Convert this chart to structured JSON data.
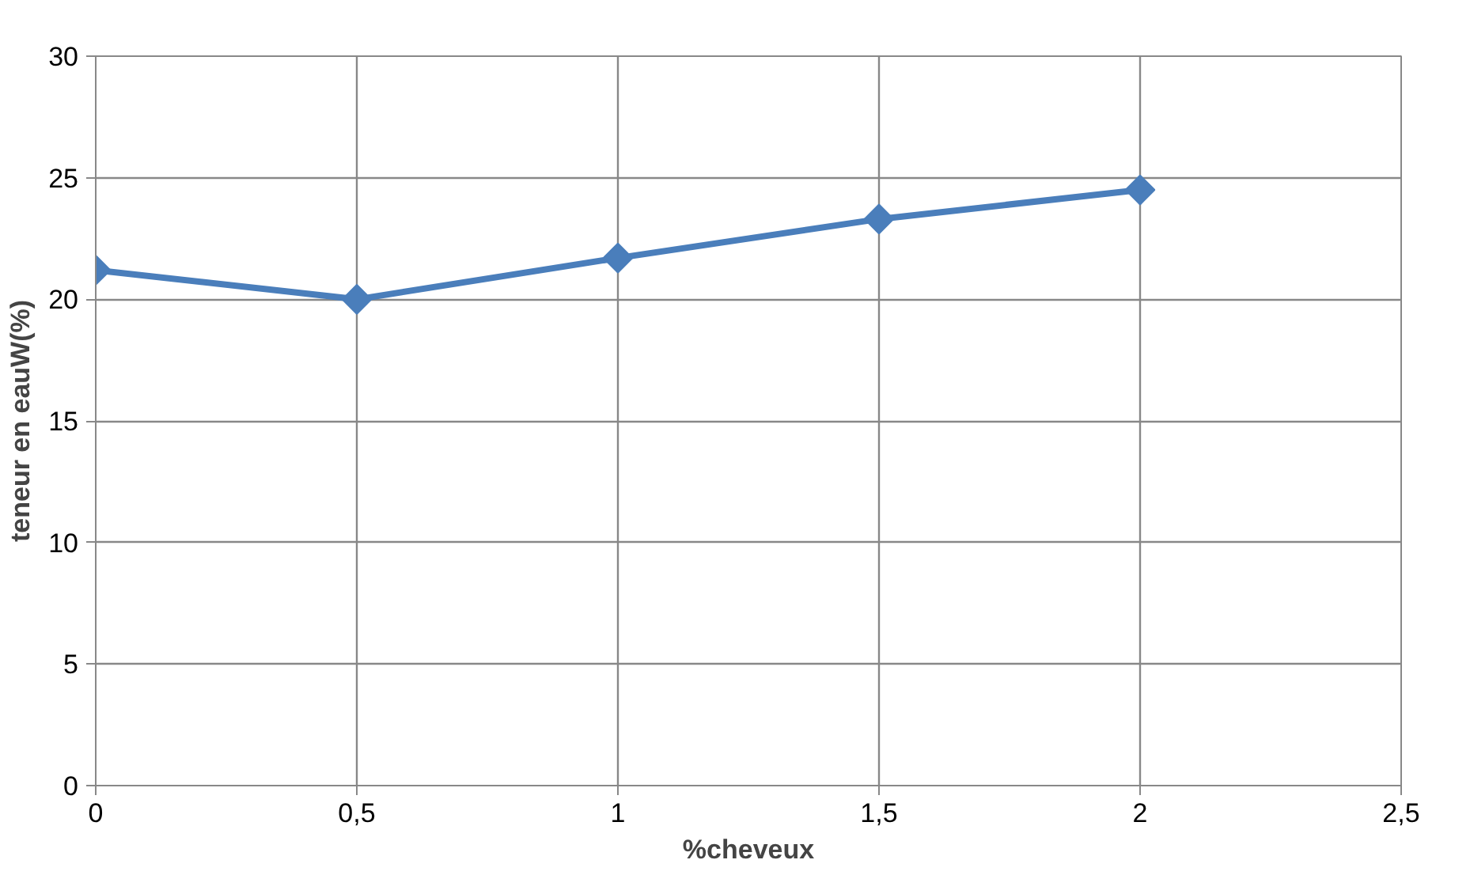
{
  "chart_data": {
    "type": "line",
    "xlabel": "%cheveux",
    "ylabel": "teneur en eauW(%)",
    "x": [
      0,
      0.5,
      1,
      1.5,
      2
    ],
    "series": [
      {
        "color": "#4a7ebb",
        "values": [
          21.2,
          20.0,
          21.7,
          23.3,
          24.5
        ]
      }
    ],
    "xlim": [
      0,
      2.5
    ],
    "ylim": [
      0,
      30
    ],
    "xticks": [
      0,
      {
        "value": 0.5,
        "label": "0,5"
      },
      1,
      {
        "value": 1.5,
        "label": "1,5"
      },
      2,
      {
        "value": 2.5,
        "label": "2,5"
      }
    ],
    "yticks": [
      0,
      5,
      10,
      15,
      20,
      25,
      30
    ],
    "grid": true,
    "marker": "diamond",
    "line_style": "solid"
  }
}
